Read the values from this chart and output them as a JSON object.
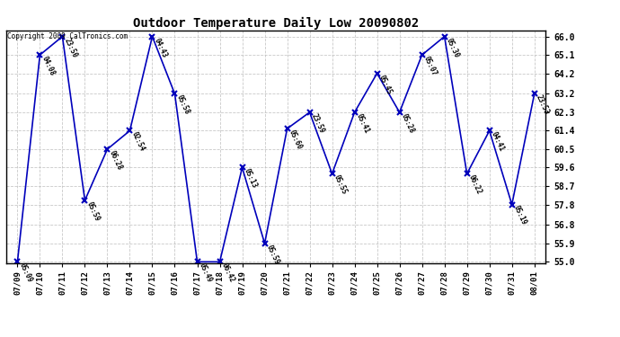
{
  "title": "Outdoor Temperature Daily Low 20090802",
  "copyright": "Copyright 2009 CalTronics.com",
  "background_color": "#ffffff",
  "line_color": "#0000bb",
  "marker_color": "#0000bb",
  "grid_color": "#bbbbbb",
  "ylim": [
    55.0,
    66.0
  ],
  "yticks": [
    55.0,
    55.9,
    56.8,
    57.8,
    58.7,
    59.6,
    60.5,
    61.4,
    62.3,
    63.2,
    64.2,
    65.1,
    66.0
  ],
  "dates": [
    "07/09",
    "07/10",
    "07/11",
    "07/12",
    "07/13",
    "07/14",
    "07/15",
    "07/16",
    "07/17",
    "07/18",
    "07/19",
    "07/20",
    "07/21",
    "07/22",
    "07/23",
    "07/24",
    "07/25",
    "07/26",
    "07/27",
    "07/28",
    "07/29",
    "07/30",
    "07/31",
    "08/01"
  ],
  "values": [
    55.0,
    65.1,
    66.0,
    58.0,
    60.5,
    61.4,
    66.0,
    63.2,
    55.0,
    55.0,
    59.6,
    55.9,
    61.5,
    62.3,
    59.3,
    62.3,
    64.2,
    62.3,
    65.1,
    66.0,
    59.3,
    61.4,
    57.8,
    63.2
  ],
  "labels": [
    "05:09",
    "04:08",
    "23:50",
    "05:59",
    "06:28",
    "02:54",
    "04:43",
    "05:58",
    "05:49",
    "06:42",
    "05:13",
    "05:59",
    "05:60",
    "23:59",
    "05:55",
    "05:41",
    "05:45",
    "05:28",
    "05:07",
    "05:30",
    "06:22",
    "04:41",
    "05:19",
    "23:53"
  ],
  "label_rotation": -65,
  "figsize": [
    6.9,
    3.75
  ],
  "dpi": 100
}
